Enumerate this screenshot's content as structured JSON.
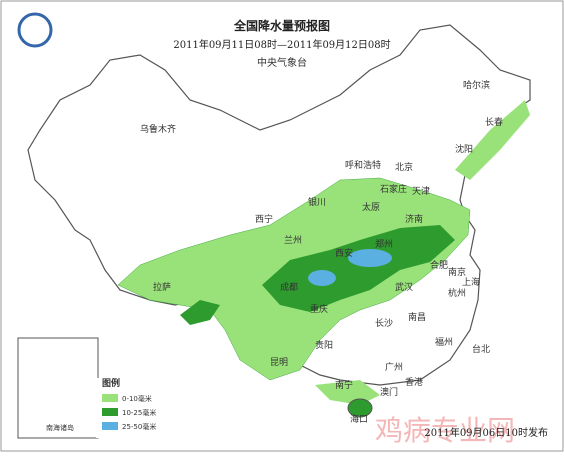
{
  "header": {
    "title": "全国降水量预报图",
    "period": "2011年09月11日08时—2011年09月12日08时",
    "issuer": "中央气象台"
  },
  "cities": [
    "哈尔滨",
    "长春",
    "沈阳",
    "乌鲁木齐",
    "呼和浩特",
    "北京",
    "天津",
    "石家庄",
    "银川",
    "太原",
    "济南",
    "西宁",
    "兰州",
    "郑州",
    "西安",
    "合肥",
    "南京",
    "上海",
    "拉萨",
    "成都",
    "武汉",
    "杭州",
    "重庆",
    "长沙",
    "南昌",
    "贵阳",
    "福州",
    "台北",
    "昆明",
    "广州",
    "香港",
    "南宁",
    "澳门",
    "海口"
  ],
  "inset": {
    "label": "南海诸岛"
  },
  "legend": {
    "title": "图例",
    "items": [
      "0-10毫米",
      "10-25毫米",
      "25-50毫米"
    ]
  },
  "footer": {
    "published": "2011年09月06日10时发布"
  },
  "watermark": "鸡病专业网"
}
